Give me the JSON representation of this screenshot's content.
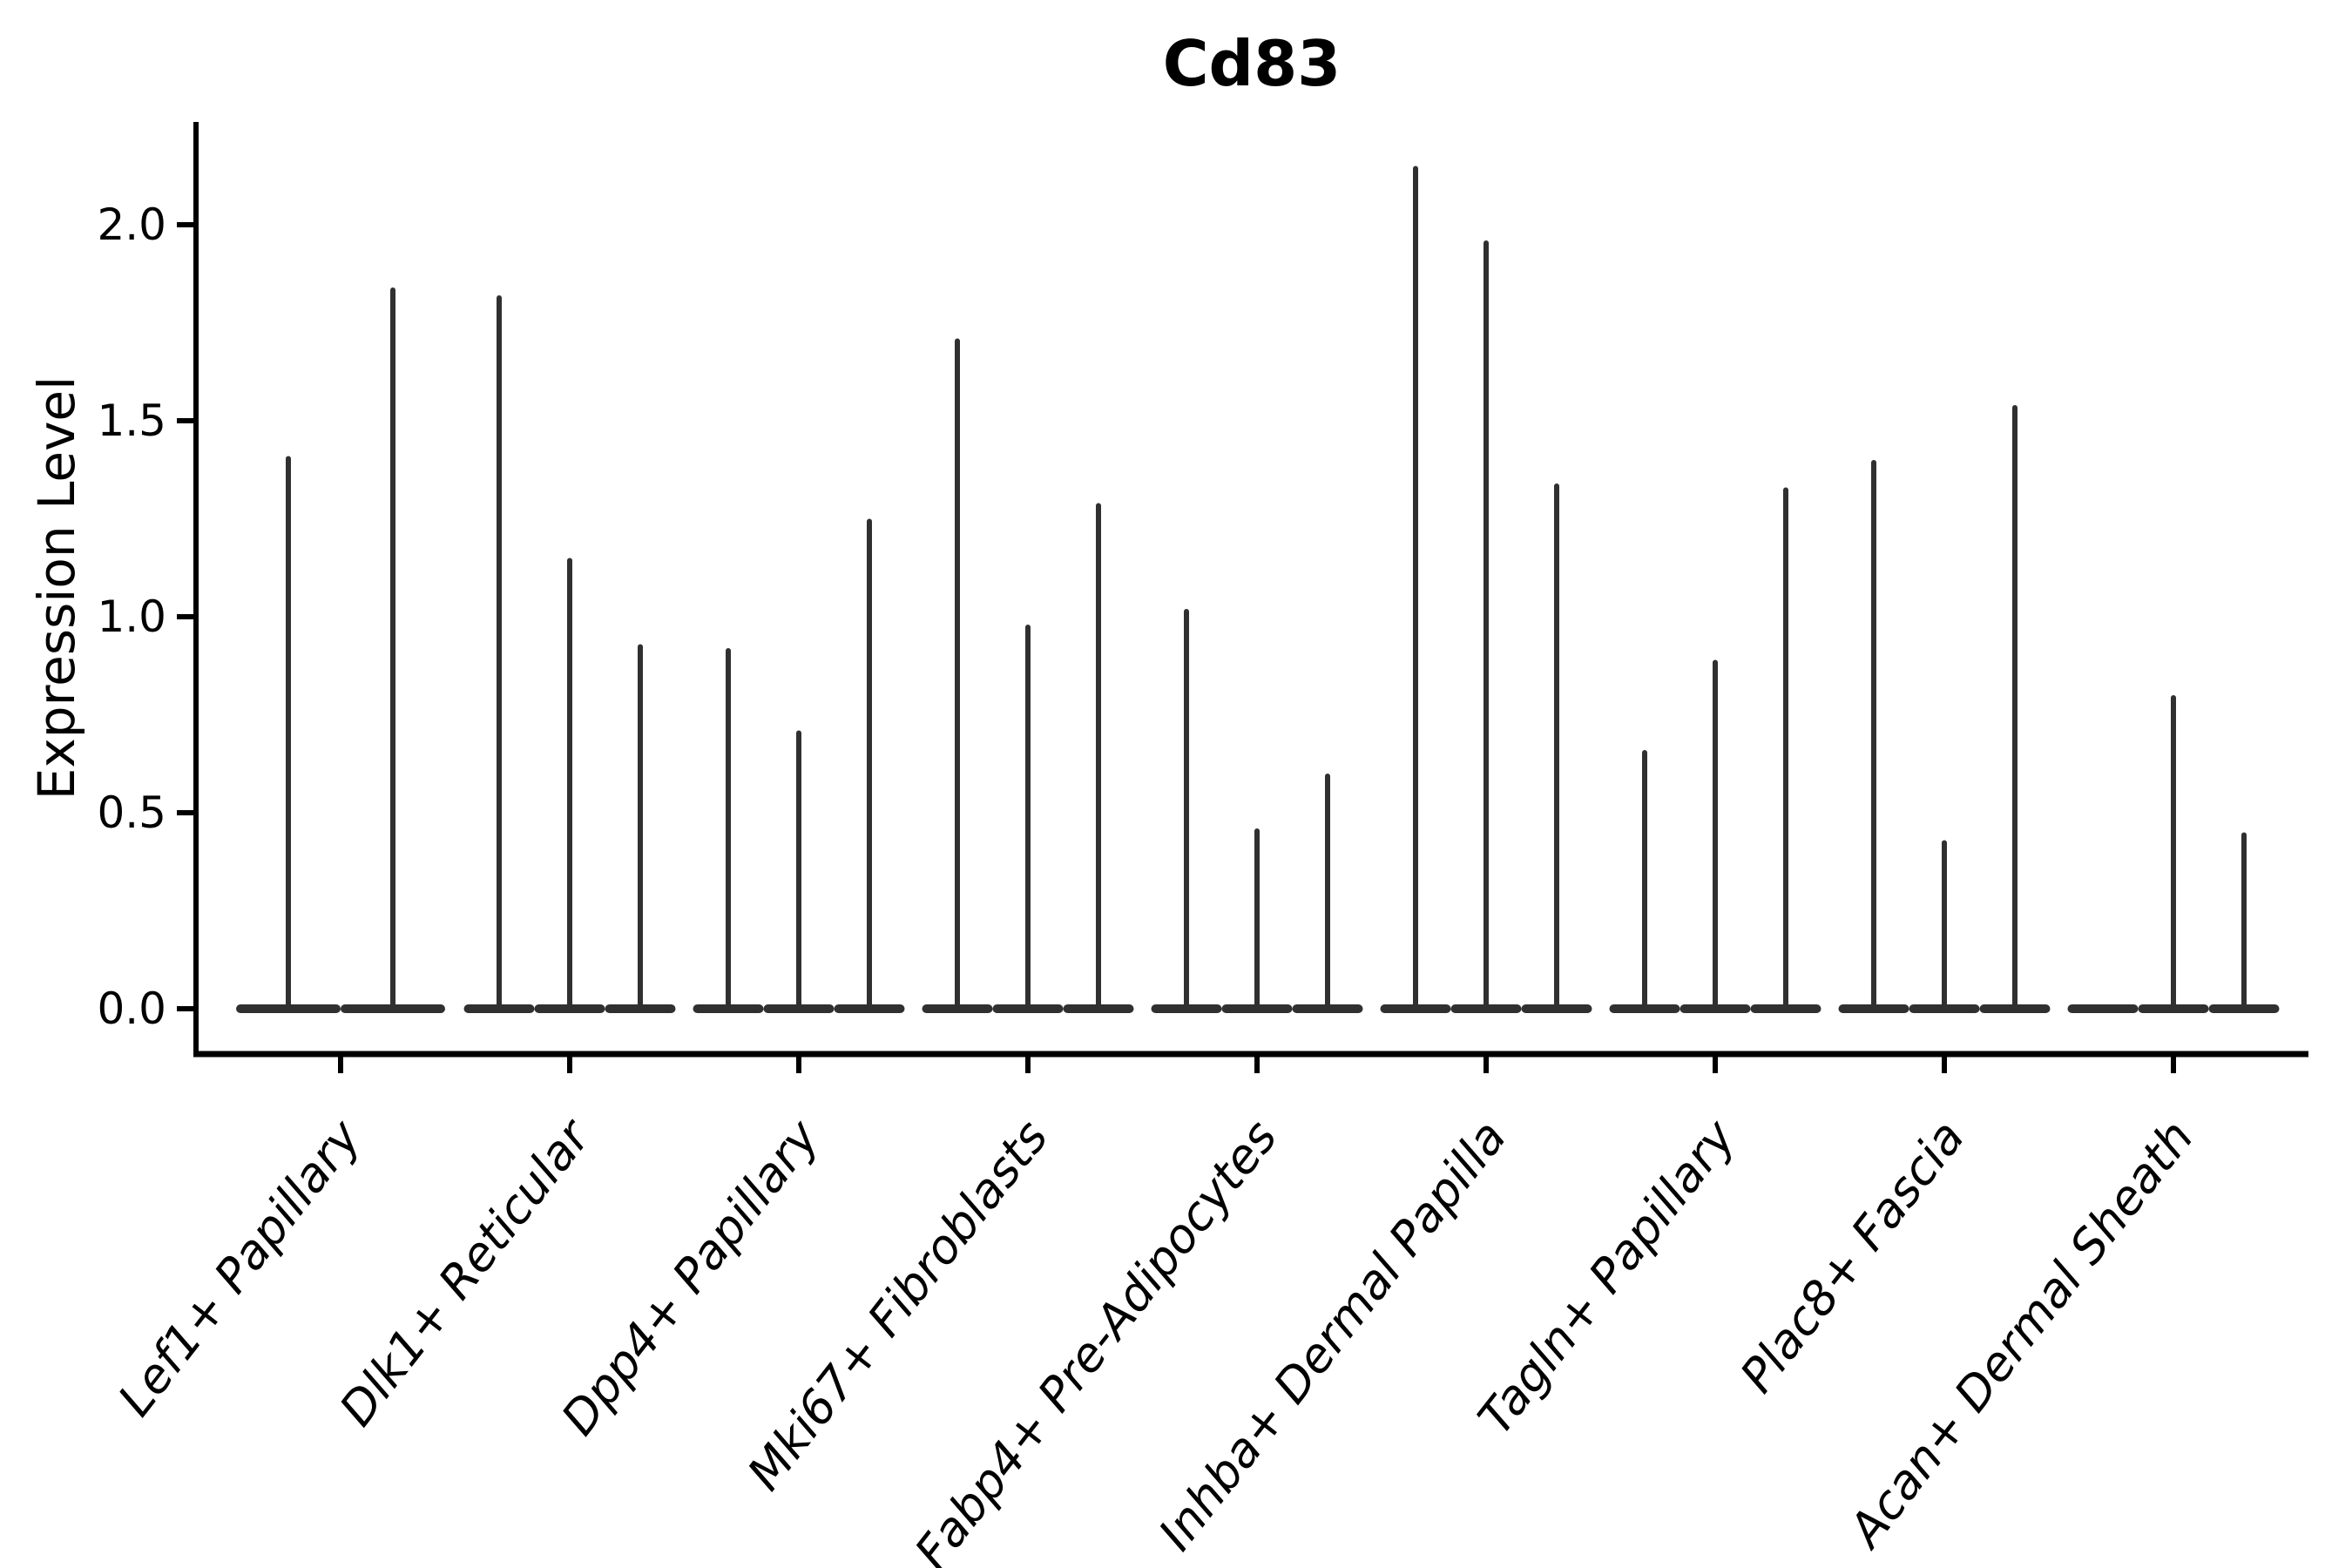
{
  "chart_data": {
    "type": "violin",
    "title": "Cd83",
    "ylabel": "Expression Level",
    "xlabel": "",
    "ylim": [
      0,
      2.26
    ],
    "grid": false,
    "legend": "none",
    "yticks": [
      {
        "label": "0.0",
        "value": 0.0
      },
      {
        "label": "0.5",
        "value": 0.5
      },
      {
        "label": "1.0",
        "value": 1.0
      },
      {
        "label": "1.5",
        "value": 1.5
      },
      {
        "label": "2.0",
        "value": 2.0
      }
    ],
    "categories": [
      "Lef1+ Papillary",
      "Dlk1+ Reticular",
      "Dpp4+ Papillary",
      "Mki67+ Fibroblasts",
      "Fabp4+ Pre-Adipocytes",
      "Inhba+ Dermal Papilla",
      "Tagln+ Papillary",
      "Plac8+ Fascia",
      "Acan+ Dermal Sheath"
    ],
    "groups": [
      {
        "category": "Lef1+ Papillary",
        "violin_heights": [
          1.41,
          1.84
        ]
      },
      {
        "category": "Dlk1+ Reticular",
        "violin_heights": [
          1.82,
          1.15,
          0.93
        ]
      },
      {
        "category": "Dpp4+ Papillary",
        "violin_heights": [
          0.92,
          0.71,
          1.25
        ]
      },
      {
        "category": "Mki67+ Fibroblasts",
        "violin_heights": [
          1.71,
          0.98,
          1.29
        ]
      },
      {
        "category": "Fabp4+ Pre-Adipocytes",
        "violin_heights": [
          1.02,
          0.46,
          0.6
        ]
      },
      {
        "category": "Inhba+ Dermal Papilla",
        "violin_heights": [
          2.15,
          1.96,
          1.34
        ]
      },
      {
        "category": "Tagln+ Papillary",
        "violin_heights": [
          0.66,
          0.89,
          1.33
        ]
      },
      {
        "category": "Plac8+ Fascia",
        "violin_heights": [
          1.4,
          0.43,
          1.54
        ]
      },
      {
        "category": "Acan+ Dermal Sheath",
        "violin_heights": [
          0.0,
          0.8,
          0.45
        ]
      }
    ],
    "colors": {
      "violin": "#303030",
      "axis": "#000000",
      "text": "#000000",
      "background": "#ffffff"
    }
  }
}
